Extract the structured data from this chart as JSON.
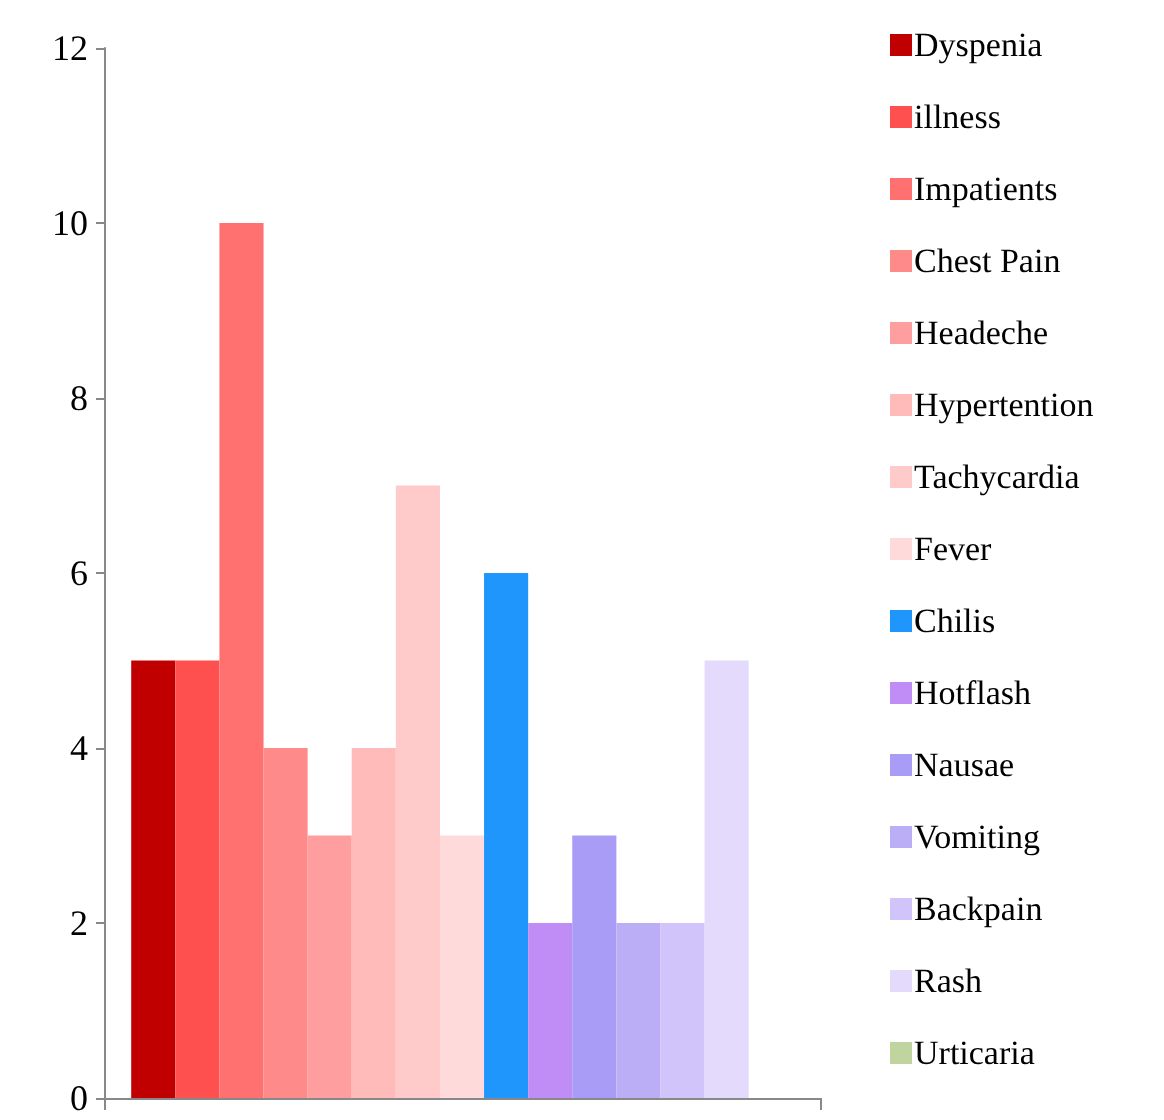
{
  "chart_data": {
    "type": "bar",
    "categories": [
      null
    ],
    "ylim": [
      0,
      12
    ],
    "yticks": [
      0,
      2,
      4,
      6,
      8,
      10,
      12
    ],
    "grid": false,
    "legend": "right",
    "series": [
      {
        "name": "Dyspenia",
        "color": "#c00000",
        "values": [
          5
        ]
      },
      {
        "name": "illness",
        "color": "#ff5050",
        "values": [
          5
        ]
      },
      {
        "name": "Impatients",
        "color": "#ff7070",
        "values": [
          10
        ]
      },
      {
        "name": "Chest Pain",
        "color": "#ff8a8a",
        "values": [
          4
        ]
      },
      {
        "name": "Headeche",
        "color": "#ff9e9e",
        "values": [
          3
        ]
      },
      {
        "name": "Hypertention",
        "color": "#ffbaba",
        "values": [
          4
        ]
      },
      {
        "name": "Tachycardia",
        "color": "#ffcaca",
        "values": [
          7
        ]
      },
      {
        "name": "Fever",
        "color": "#ffdada",
        "values": [
          3
        ]
      },
      {
        "name": "Chilis",
        "color": "#1e96fc",
        "values": [
          6
        ]
      },
      {
        "name": "Hotflash",
        "color": "#c08cf6",
        "values": [
          2
        ]
      },
      {
        "name": "Nausae",
        "color": "#a99cf7",
        "values": [
          3
        ]
      },
      {
        "name": "Vomiting",
        "color": "#bbaef6",
        "values": [
          2
        ]
      },
      {
        "name": "Backpain",
        "color": "#d0c4fa",
        "values": [
          2
        ]
      },
      {
        "name": "Rash",
        "color": "#e4dafc",
        "values": [
          5
        ]
      },
      {
        "name": "Urticaria",
        "color": "#c0d4a0",
        "values": [
          0
        ]
      }
    ]
  }
}
